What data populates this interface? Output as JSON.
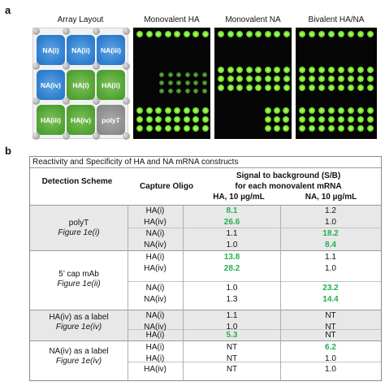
{
  "panel_a": {
    "letter": "a",
    "titles": [
      "Array Layout",
      "Monovalent HA",
      "Monovalent NA",
      "Bivalent HA/NA"
    ],
    "layout_labels": [
      "NA(i)",
      "NA(ii)",
      "NA(iii)",
      "NA(iv)",
      "HA(i)",
      "HA(ii)",
      "HA(iii)",
      "HA(iv)",
      "polyT"
    ],
    "colors": {
      "na": "#2f7fd0",
      "ha": "#52a335",
      "polyt": "#8e8e8e",
      "signal": "#6be02a"
    }
  },
  "panel_b": {
    "letter": "b",
    "table_title": "Reactivity and Specificity of HA and NA mRNA constructs",
    "headers": {
      "detection": "Detection Scheme",
      "capture": "Capture Oligo",
      "signal_line1": "Signal to background (S/B)",
      "signal_line2": "for each monovalent mRNA",
      "ha_col": "HA, 10 µg/mL",
      "na_col": "NA, 10 µg/mL"
    },
    "groups": [
      {
        "scheme": "polyT",
        "figure": "Figure 1e(i)"
      },
      {
        "scheme": "5’ cap mAb",
        "figure": "Figure 1e(ii)"
      },
      {
        "scheme": "HA(iv) as a label",
        "figure": "Figure 1e(iv)"
      },
      {
        "scheme": "NA(iv) as a label",
        "figure": "Figure 1e(iv)"
      }
    ],
    "rows": [
      {
        "oligo": "HA(i)",
        "ha": "8.1",
        "na": "1.2",
        "ha_hi": true,
        "na_hi": false
      },
      {
        "oligo": "HA(iv)",
        "ha": "26.6",
        "na": "1.0",
        "ha_hi": true,
        "na_hi": false
      },
      {
        "oligo": "NA(i)",
        "ha": "1.1",
        "na": "18.2",
        "ha_hi": false,
        "na_hi": true
      },
      {
        "oligo": "NA(iv)",
        "ha": "1.0",
        "na": "8.4",
        "ha_hi": false,
        "na_hi": true
      },
      {
        "oligo": "HA(i)",
        "ha": "13.8",
        "na": "1.1",
        "ha_hi": true,
        "na_hi": false
      },
      {
        "oligo": "HA(iv)",
        "ha": "28.2",
        "na": "1.0",
        "ha_hi": true,
        "na_hi": false
      },
      {
        "oligo": "NA(i)",
        "ha": "1.0",
        "na": "23.2",
        "ha_hi": false,
        "na_hi": true
      },
      {
        "oligo": "NA(iv)",
        "ha": "1.3",
        "na": "14.4",
        "ha_hi": false,
        "na_hi": true
      },
      {
        "oligo": "NA(i)",
        "ha": "1.1",
        "na": "NT",
        "ha_hi": false,
        "na_hi": false
      },
      {
        "oligo": "NA(iv)",
        "ha": "1.0",
        "na": "NT",
        "ha_hi": false,
        "na_hi": false
      },
      {
        "oligo": "HA(i)",
        "ha": "5.3",
        "na": "NT",
        "ha_hi": true,
        "na_hi": false
      },
      {
        "oligo": "HA(i)",
        "ha": "NT",
        "na": "6.2",
        "ha_hi": false,
        "na_hi": true
      },
      {
        "oligo": "HA(i)",
        "ha": "NT",
        "na": "1.0",
        "ha_hi": false,
        "na_hi": false
      },
      {
        "oligo": "HA(iv)",
        "ha": "NT",
        "na": "1.0",
        "ha_hi": false,
        "na_hi": false
      }
    ]
  }
}
